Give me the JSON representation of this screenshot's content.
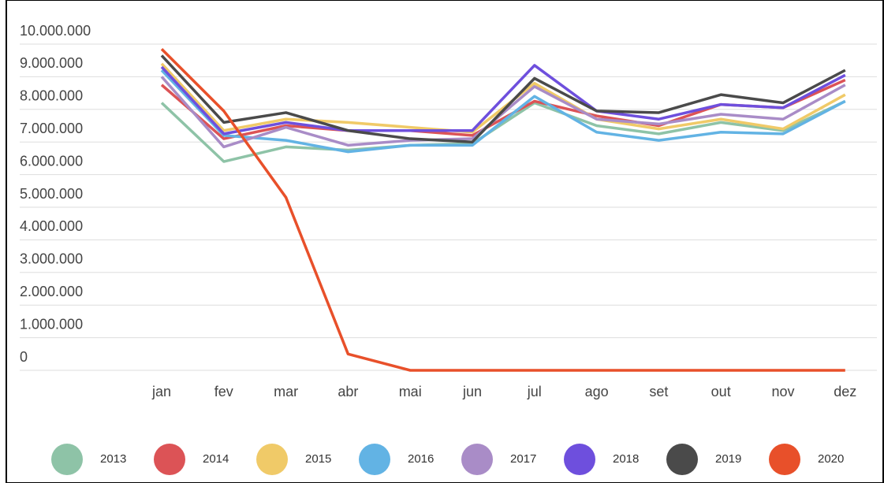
{
  "chart_data": {
    "type": "line",
    "categories": [
      "jan",
      "fev",
      "mar",
      "abr",
      "mai",
      "jun",
      "jul",
      "ago",
      "set",
      "out",
      "nov",
      "dez"
    ],
    "series": [
      {
        "name": "2013",
        "color": "#8ec3a7",
        "values": [
          8200000,
          6400000,
          6850000,
          6750000,
          6900000,
          6950000,
          8200000,
          7500000,
          7250000,
          7600000,
          7350000,
          8250000
        ]
      },
      {
        "name": "2014",
        "color": "#dc5356",
        "values": [
          8750000,
          7100000,
          7500000,
          7350000,
          7350000,
          7200000,
          8250000,
          7800000,
          7500000,
          8150000,
          8050000,
          8900000
        ]
      },
      {
        "name": "2015",
        "color": "#f0ca68",
        "values": [
          9400000,
          7350000,
          7700000,
          7600000,
          7450000,
          7300000,
          8800000,
          7700000,
          7400000,
          7700000,
          7400000,
          8450000
        ]
      },
      {
        "name": "2016",
        "color": "#62b3e4",
        "values": [
          9200000,
          7200000,
          7050000,
          6700000,
          6900000,
          6900000,
          8400000,
          7300000,
          7050000,
          7300000,
          7250000,
          8250000
        ]
      },
      {
        "name": "2017",
        "color": "#a98cc7",
        "values": [
          9000000,
          6850000,
          7450000,
          6900000,
          7050000,
          7100000,
          8700000,
          7700000,
          7550000,
          7850000,
          7700000,
          8750000
        ]
      },
      {
        "name": "2018",
        "color": "#6e4fdd",
        "values": [
          9300000,
          7250000,
          7600000,
          7350000,
          7350000,
          7350000,
          9350000,
          7950000,
          7700000,
          8150000,
          8050000,
          9050000
        ]
      },
      {
        "name": "2019",
        "color": "#4a4a4a",
        "values": [
          9650000,
          7600000,
          7900000,
          7350000,
          7100000,
          7000000,
          8950000,
          7950000,
          7900000,
          8450000,
          8200000,
          9200000
        ]
      },
      {
        "name": "2020",
        "color": "#e8502a",
        "values": [
          9850000,
          7950000,
          5300000,
          500000,
          0,
          0,
          0,
          0,
          0,
          0,
          0,
          0
        ]
      }
    ],
    "ylim": [
      0,
      10000000
    ],
    "yticks": [
      0,
      {
        "value": 1000000,
        "label": "1.000.000"
      },
      {
        "value": 2000000,
        "label": "2.000.000"
      },
      {
        "value": 3000000,
        "label": "3.000.000"
      },
      {
        "value": 4000000,
        "label": "4.000.000"
      },
      {
        "value": 5000000,
        "label": "5.000.000"
      },
      {
        "value": 6000000,
        "label": "6.000.000"
      },
      {
        "value": 7000000,
        "label": "7.000.000"
      },
      {
        "value": 8000000,
        "label": "8.000.000"
      },
      {
        "value": 9000000,
        "label": "9.000.000"
      },
      {
        "value": 10000000,
        "label": "10.000.000"
      }
    ],
    "grid": true,
    "legend": "bottom"
  }
}
